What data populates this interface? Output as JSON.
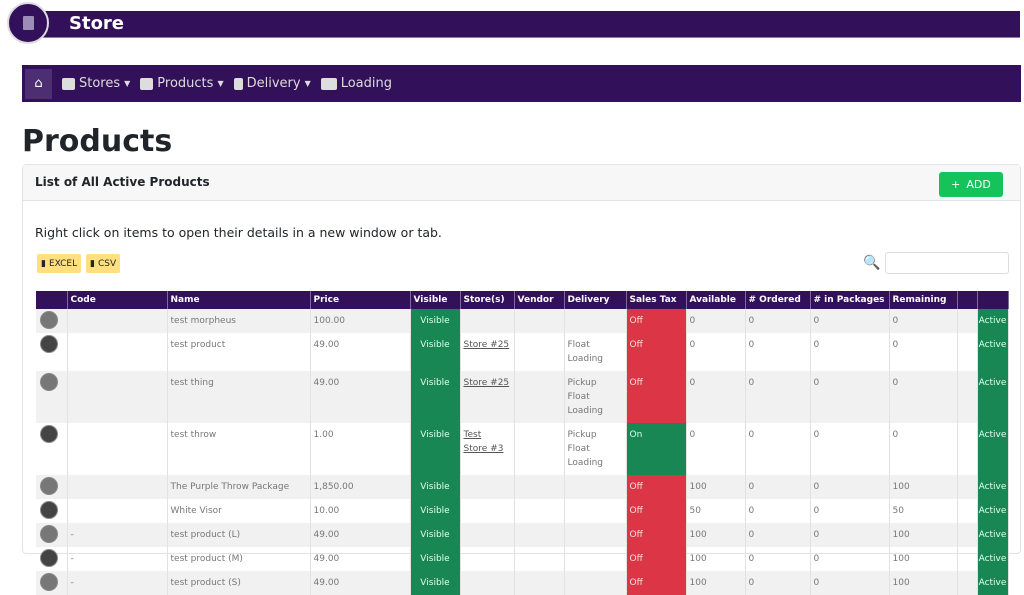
{
  "app": {
    "title": "Store",
    "logo_icon": "report-icon"
  },
  "nav": {
    "items": [
      {
        "label": "Stores",
        "icon": "store-icon"
      },
      {
        "label": "Products",
        "icon": "products-icon"
      },
      {
        "label": "Delivery",
        "icon": "clipboard-icon"
      },
      {
        "label": "Loading",
        "icon": "truck-loading-icon"
      }
    ]
  },
  "page": {
    "title": "Products",
    "card_title": "List of All Active Products",
    "add_label": "ADD",
    "hint": "Right click on items to open their details in a new window or tab.",
    "excel_label": "EXCEL",
    "csv_label": "CSV",
    "search_placeholder": ""
  },
  "table": {
    "headers": [
      "",
      "Code",
      "Name",
      "Price",
      "Visible",
      "Store(s)",
      "Vendor",
      "Delivery",
      "Sales Tax",
      "Available",
      "# Ordered",
      "# in Packages",
      "Remaining",
      "",
      ""
    ],
    "rows": [
      {
        "code": "",
        "name": "test morpheus",
        "price": "100.00",
        "visible": "Visible",
        "stores": [],
        "vendor": "",
        "delivery": [],
        "tax": "Off",
        "available": "0",
        "ordered": "0",
        "packages": "0",
        "remaining": "0",
        "status": "Active"
      },
      {
        "code": "",
        "name": "test product",
        "price": "49.00",
        "visible": "Visible",
        "stores": [
          "Store #25"
        ],
        "vendor": "",
        "delivery": [
          "Float Loading"
        ],
        "tax": "Off",
        "available": "0",
        "ordered": "0",
        "packages": "0",
        "remaining": "0",
        "status": "Active"
      },
      {
        "code": "",
        "name": "test thing",
        "price": "49.00",
        "visible": "Visible",
        "stores": [
          "Store #25"
        ],
        "vendor": "",
        "delivery": [
          "Pickup",
          "Float Loading"
        ],
        "tax": "Off",
        "available": "0",
        "ordered": "0",
        "packages": "0",
        "remaining": "0",
        "status": "Active"
      },
      {
        "code": "",
        "name": "test throw",
        "price": "1.00",
        "visible": "Visible",
        "stores": [
          "Test",
          "Store #3"
        ],
        "vendor": "",
        "delivery": [
          "Pickup",
          "Float Loading"
        ],
        "tax": "On",
        "available": "0",
        "ordered": "0",
        "packages": "0",
        "remaining": "0",
        "status": "Active"
      },
      {
        "code": "",
        "name": "The Purple Throw Package",
        "price": "1,850.00",
        "visible": "Visible",
        "stores": [],
        "vendor": "",
        "delivery": [],
        "tax": "Off",
        "available": "100",
        "ordered": "0",
        "packages": "0",
        "remaining": "100",
        "status": "Active"
      },
      {
        "code": "",
        "name": "White Visor",
        "price": "10.00",
        "visible": "Visible",
        "stores": [],
        "vendor": "",
        "delivery": [],
        "tax": "Off",
        "available": "50",
        "ordered": "0",
        "packages": "0",
        "remaining": "50",
        "status": "Active"
      },
      {
        "code": "-",
        "name": "test product (L)",
        "price": "49.00",
        "visible": "Visible",
        "stores": [],
        "vendor": "",
        "delivery": [],
        "tax": "Off",
        "available": "100",
        "ordered": "0",
        "packages": "0",
        "remaining": "100",
        "status": "Active"
      },
      {
        "code": "-",
        "name": "test product (M)",
        "price": "49.00",
        "visible": "Visible",
        "stores": [],
        "vendor": "",
        "delivery": [],
        "tax": "Off",
        "available": "100",
        "ordered": "0",
        "packages": "0",
        "remaining": "100",
        "status": "Active"
      },
      {
        "code": "-",
        "name": "test product (S)",
        "price": "49.00",
        "visible": "Visible",
        "stores": [],
        "vendor": "",
        "delivery": [],
        "tax": "Off",
        "available": "100",
        "ordered": "0",
        "packages": "0",
        "remaining": "100",
        "status": "Active"
      }
    ]
  }
}
